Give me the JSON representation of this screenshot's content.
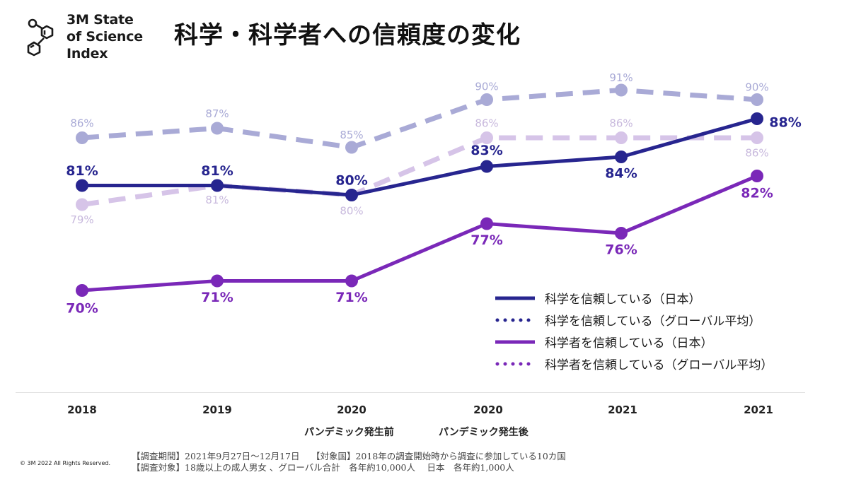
{
  "logo": {
    "text": "3M State\nof Science\nIndex",
    "icon": "molecule-icon"
  },
  "title": "科学・科学者への信頼度の変化",
  "chart_data": {
    "type": "line",
    "title": "科学・科学者への信頼度の変化",
    "xlabel": "",
    "ylabel": "",
    "categories": [
      "2018",
      "2019",
      "2020",
      "2020",
      "2021",
      "2021"
    ],
    "phase_labels": [
      {
        "text": "パンデミック発生前",
        "under_category_index": 2
      },
      {
        "text": "パンデミック発生後",
        "under_category_index": 3
      }
    ],
    "ylim": [
      70,
      91
    ],
    "grid": false,
    "legend_position": "bottom-right",
    "series": [
      {
        "name": "科学を信頼している（グローバル平均）",
        "style": "dashed",
        "color": "#a9aad6",
        "values": [
          86,
          87,
          85,
          90,
          91,
          90
        ]
      },
      {
        "name": "科学者を信頼している（グローバル平均）",
        "style": "dashed",
        "color": "#d6c4e8",
        "values": [
          79,
          81,
          80,
          86,
          86,
          86
        ]
      },
      {
        "name": "科学を信頼している（日本）",
        "style": "solid",
        "color": "#27258f",
        "values": [
          81,
          81,
          80,
          83,
          84,
          88
        ]
      },
      {
        "name": "科学者を信頼している（日本）",
        "style": "solid",
        "color": "#7a28b8",
        "values": [
          70,
          71,
          71,
          77,
          76,
          82
        ]
      }
    ]
  },
  "legend": [
    {
      "label": "科学を信頼している（日本）",
      "style": "solid",
      "color": "#27258f"
    },
    {
      "label": "科学を信頼している（グローバル平均）",
      "style": "dotted",
      "color": "#27258f"
    },
    {
      "label": "科学者を信頼している（日本）",
      "style": "solid",
      "color": "#7a28b8"
    },
    {
      "label": "科学者を信頼している（グローバル平均）",
      "style": "dotted",
      "color": "#7a28b8"
    }
  ],
  "footer": {
    "copyright": "© 3M  2022     All Rights Reserved.",
    "notes": [
      "【調査期間】2021年9月27日～12月17日　 【対象国】2018年の調査開始時から調査に参加している10カ国",
      "【調査対象】18歳以上の成人男女 、グローバル合計　各年約10,000人　 日本　各年約1,000人"
    ]
  }
}
